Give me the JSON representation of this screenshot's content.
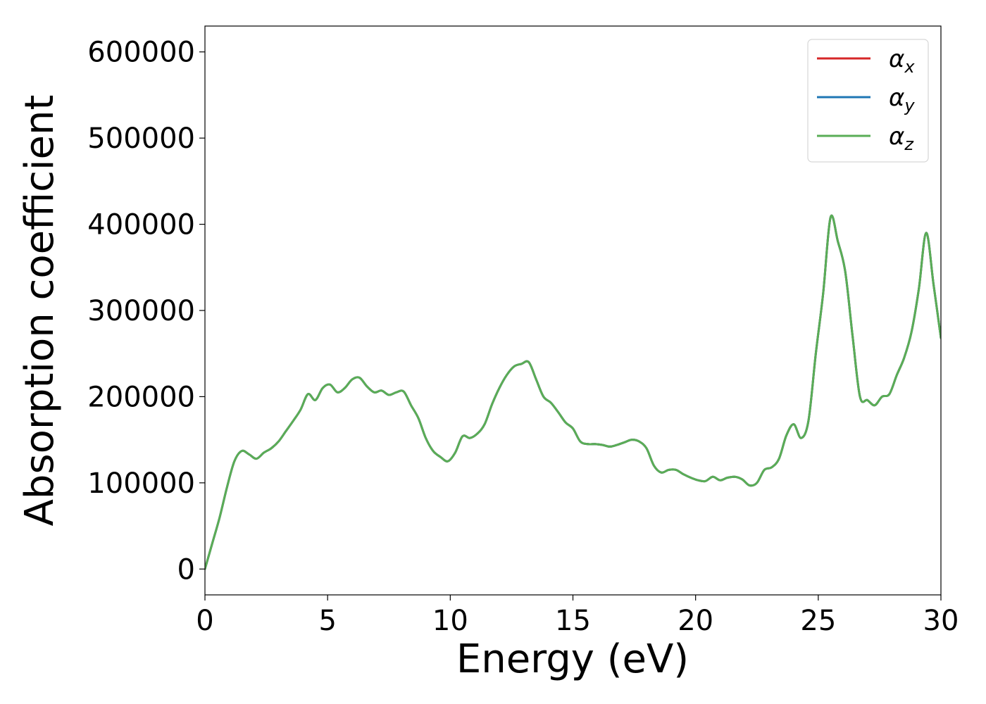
{
  "chart_data": {
    "type": "line",
    "xlabel": "Energy (eV)",
    "ylabel": "Absorption coefficient",
    "xlim": [
      0,
      30
    ],
    "ylim": [
      -30000,
      630000
    ],
    "xticks": [
      "0",
      "5",
      "10",
      "15",
      "20",
      "25",
      "30"
    ],
    "xtick_values": [
      0,
      5,
      10,
      15,
      20,
      25,
      30
    ],
    "yticks": [
      "0",
      "100000",
      "200000",
      "300000",
      "400000",
      "500000",
      "600000"
    ],
    "ytick_values": [
      0,
      100000,
      200000,
      300000,
      400000,
      500000,
      600000
    ],
    "grid": false,
    "legend_position": "top-right",
    "x": [
      0,
      0.3,
      0.6,
      0.9,
      1.2,
      1.5,
      1.8,
      2.1,
      2.4,
      2.7,
      3.0,
      3.3,
      3.6,
      3.9,
      4.2,
      4.5,
      4.8,
      5.1,
      5.4,
      5.7,
      6.0,
      6.3,
      6.6,
      6.9,
      7.2,
      7.5,
      7.8,
      8.1,
      8.4,
      8.7,
      9.0,
      9.3,
      9.6,
      9.9,
      10.2,
      10.5,
      10.8,
      11.1,
      11.4,
      11.7,
      12.0,
      12.3,
      12.6,
      12.9,
      13.2,
      13.5,
      13.8,
      14.1,
      14.4,
      14.7,
      15.0,
      15.3,
      15.6,
      15.9,
      16.2,
      16.5,
      16.8,
      17.1,
      17.4,
      17.7,
      18.0,
      18.3,
      18.6,
      18.9,
      19.2,
      19.5,
      19.8,
      20.1,
      20.4,
      20.7,
      21.0,
      21.3,
      21.6,
      21.9,
      22.2,
      22.5,
      22.8,
      23.1,
      23.4,
      23.7,
      24.0,
      24.3,
      24.6,
      24.9,
      25.2,
      25.5,
      25.8,
      26.1,
      26.4,
      26.7,
      27.0,
      27.3,
      27.6,
      27.9,
      28.2,
      28.5,
      28.8,
      29.1,
      29.4,
      29.7,
      30.0
    ],
    "series": [
      {
        "name_main": "α",
        "name_sub": "x",
        "color": "#d62728",
        "values": [
          0,
          30000,
          60000,
          95000,
          125000,
          137000,
          133000,
          128000,
          135000,
          140000,
          148000,
          160000,
          172000,
          185000,
          203000,
          196000,
          210000,
          214000,
          205000,
          210000,
          220000,
          222000,
          212000,
          205000,
          207000,
          202000,
          205000,
          206000,
          190000,
          175000,
          152000,
          137000,
          130000,
          125000,
          135000,
          154000,
          152000,
          157000,
          168000,
          191000,
          210000,
          225000,
          235000,
          238000,
          240000,
          220000,
          200000,
          193000,
          182000,
          170000,
          163000,
          148000,
          145000,
          145000,
          144000,
          142000,
          144000,
          147000,
          150000,
          148000,
          140000,
          120000,
          112000,
          115000,
          115000,
          110000,
          106000,
          103000,
          102000,
          107000,
          103000,
          106000,
          107000,
          104000,
          97000,
          100000,
          115000,
          118000,
          128000,
          155000,
          168000,
          152000,
          172000,
          250000,
          320000,
          408000,
          380000,
          345000,
          270000,
          200000,
          196000,
          190000,
          200000,
          203000,
          225000,
          245000,
          275000,
          325000,
          390000,
          330000,
          268000
        ]
      },
      {
        "name_main": "α",
        "name_sub": "y",
        "color": "#1f77b4",
        "values": [
          0,
          30000,
          60000,
          95000,
          125000,
          137000,
          133000,
          128000,
          135000,
          140000,
          148000,
          160000,
          172000,
          185000,
          203000,
          196000,
          210000,
          214000,
          205000,
          210000,
          220000,
          222000,
          212000,
          205000,
          207000,
          202000,
          205000,
          206000,
          190000,
          175000,
          152000,
          137000,
          130000,
          125000,
          135000,
          154000,
          152000,
          157000,
          168000,
          191000,
          210000,
          225000,
          235000,
          238000,
          240000,
          220000,
          200000,
          193000,
          182000,
          170000,
          163000,
          148000,
          145000,
          145000,
          144000,
          142000,
          144000,
          147000,
          150000,
          148000,
          140000,
          120000,
          112000,
          115000,
          115000,
          110000,
          106000,
          103000,
          102000,
          107000,
          103000,
          106000,
          107000,
          104000,
          97000,
          100000,
          115000,
          118000,
          128000,
          155000,
          168000,
          152000,
          172000,
          250000,
          320000,
          408000,
          380000,
          345000,
          270000,
          200000,
          196000,
          190000,
          200000,
          203000,
          225000,
          245000,
          275000,
          325000,
          390000,
          330000,
          268000
        ]
      },
      {
        "name_main": "α",
        "name_sub": "z",
        "color": "#5aad56",
        "values": [
          0,
          30000,
          60000,
          95000,
          125000,
          137000,
          133000,
          128000,
          135000,
          140000,
          148000,
          160000,
          172000,
          185000,
          203000,
          196000,
          210000,
          214000,
          205000,
          210000,
          220000,
          222000,
          212000,
          205000,
          207000,
          202000,
          205000,
          206000,
          190000,
          175000,
          152000,
          137000,
          130000,
          125000,
          135000,
          154000,
          152000,
          157000,
          168000,
          191000,
          210000,
          225000,
          235000,
          238000,
          240000,
          220000,
          200000,
          193000,
          182000,
          170000,
          163000,
          148000,
          145000,
          145000,
          144000,
          142000,
          144000,
          147000,
          150000,
          148000,
          140000,
          120000,
          112000,
          115000,
          115000,
          110000,
          106000,
          103000,
          102000,
          107000,
          103000,
          106000,
          107000,
          104000,
          97000,
          100000,
          115000,
          118000,
          128000,
          155000,
          168000,
          152000,
          172000,
          250000,
          320000,
          408000,
          380000,
          345000,
          270000,
          200000,
          196000,
          190000,
          200000,
          203000,
          225000,
          245000,
          275000,
          325000,
          390000,
          330000,
          268000
        ]
      }
    ]
  }
}
